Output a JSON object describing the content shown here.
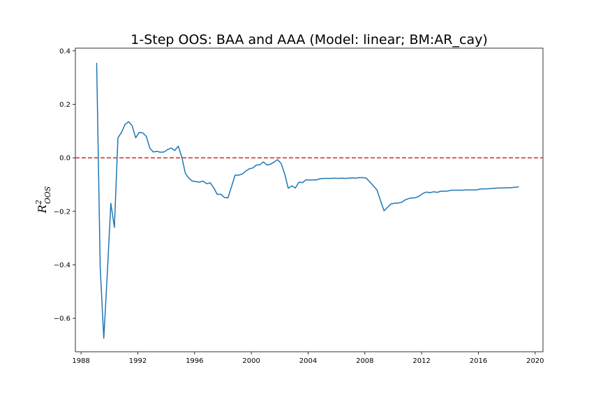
{
  "chart_data": {
    "type": "line",
    "title": "1-Step OOS: BAA and AAA (Model: linear; BM:AR_cay)",
    "ylabel": {
      "base": "R",
      "sup": "2",
      "sub": "OOS"
    },
    "xlabel": "",
    "xlim": [
      1987.6,
      2020.55
    ],
    "ylim": [
      -0.725,
      0.41
    ],
    "xticks": [
      1988,
      1992,
      1996,
      2000,
      2004,
      2008,
      2012,
      2016,
      2020
    ],
    "yticks": [
      0.4,
      0.2,
      0.0,
      -0.2,
      -0.4,
      -0.6
    ],
    "ytick_labels": [
      "0.4",
      "0.2",
      "0.0",
      "−0.2",
      "−0.4",
      "−0.6"
    ],
    "reference_line": {
      "y": 0.0,
      "color": "#d62728",
      "style": "dashed"
    },
    "grid": false,
    "series": [
      {
        "color": "#1f77b4",
        "x": [
          1989.1,
          1989.35,
          1989.6,
          1989.85,
          1990.1,
          1990.35,
          1990.6,
          1990.85,
          1991.1,
          1991.35,
          1991.6,
          1991.85,
          1992.1,
          1992.35,
          1992.6,
          1992.85,
          1993.1,
          1993.35,
          1993.6,
          1993.85,
          1994.1,
          1994.35,
          1994.6,
          1994.85,
          1995.1,
          1995.35,
          1995.6,
          1995.85,
          1996.1,
          1996.35,
          1996.6,
          1996.85,
          1997.1,
          1997.35,
          1997.6,
          1997.85,
          1998.1,
          1998.35,
          1998.6,
          1998.85,
          1999.1,
          1999.35,
          1999.6,
          1999.85,
          2000.1,
          2000.35,
          2000.6,
          2000.85,
          2001.1,
          2001.35,
          2001.6,
          2001.85,
          2002.1,
          2002.35,
          2002.6,
          2002.85,
          2003.1,
          2003.35,
          2003.6,
          2003.85,
          2004.1,
          2004.35,
          2004.6,
          2004.85,
          2005.1,
          2005.35,
          2005.6,
          2005.85,
          2006.1,
          2006.35,
          2006.6,
          2006.85,
          2007.1,
          2007.35,
          2007.6,
          2007.85,
          2008.1,
          2008.35,
          2008.6,
          2008.85,
          2009.1,
          2009.35,
          2009.6,
          2009.85,
          2010.1,
          2010.35,
          2010.6,
          2010.85,
          2011.1,
          2011.35,
          2011.6,
          2011.85,
          2012.1,
          2012.35,
          2012.6,
          2012.85,
          2013.1,
          2013.35,
          2013.6,
          2013.85,
          2014.1,
          2014.35,
          2014.6,
          2014.85,
          2015.1,
          2015.35,
          2015.6,
          2015.85,
          2016.1,
          2016.35,
          2016.6,
          2016.85,
          2017.1,
          2017.35,
          2017.6,
          2017.85,
          2018.1,
          2018.35,
          2018.6,
          2018.85
        ],
        "y": [
          0.355,
          -0.41,
          -0.675,
          -0.43,
          -0.17,
          -0.26,
          0.075,
          0.095,
          0.125,
          0.135,
          0.12,
          0.075,
          0.095,
          0.093,
          0.08,
          0.035,
          0.022,
          0.024,
          0.021,
          0.022,
          0.031,
          0.037,
          0.027,
          0.044,
          0.003,
          -0.058,
          -0.077,
          -0.087,
          -0.089,
          -0.091,
          -0.087,
          -0.097,
          -0.093,
          -0.112,
          -0.137,
          -0.136,
          -0.148,
          -0.15,
          -0.108,
          -0.065,
          -0.065,
          -0.061,
          -0.05,
          -0.041,
          -0.038,
          -0.027,
          -0.026,
          -0.015,
          -0.027,
          -0.024,
          -0.016,
          -0.007,
          -0.021,
          -0.06,
          -0.114,
          -0.105,
          -0.113,
          -0.091,
          -0.093,
          -0.082,
          -0.083,
          -0.083,
          -0.082,
          -0.078,
          -0.077,
          -0.077,
          -0.077,
          -0.076,
          -0.077,
          -0.076,
          -0.077,
          -0.076,
          -0.075,
          -0.076,
          -0.074,
          -0.074,
          -0.076,
          -0.09,
          -0.105,
          -0.12,
          -0.16,
          -0.198,
          -0.185,
          -0.172,
          -0.17,
          -0.169,
          -0.166,
          -0.157,
          -0.152,
          -0.15,
          -0.149,
          -0.142,
          -0.133,
          -0.128,
          -0.13,
          -0.127,
          -0.129,
          -0.125,
          -0.125,
          -0.124,
          -0.121,
          -0.121,
          -0.121,
          -0.121,
          -0.12,
          -0.12,
          -0.12,
          -0.12,
          -0.117,
          -0.116,
          -0.116,
          -0.115,
          -0.114,
          -0.113,
          -0.113,
          -0.112,
          -0.112,
          -0.111,
          -0.11,
          -0.109
        ]
      }
    ]
  }
}
